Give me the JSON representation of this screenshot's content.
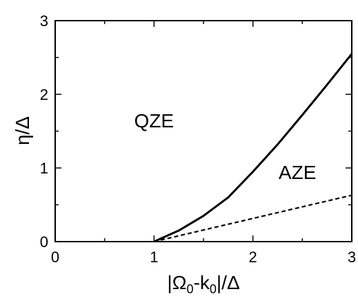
{
  "chart_data": {
    "type": "line",
    "title": "",
    "xlabel": {
      "bar": "|",
      "omega": "Ω",
      "omega_sub": "0",
      "minus_k": "-k",
      "k_sub": "0",
      "bar_over_delta": "|/Δ"
    },
    "ylabel": "η/Δ",
    "xlim": [
      0,
      3
    ],
    "ylim": [
      0,
      3
    ],
    "x_ticks": [
      "0",
      "1",
      "2",
      "3"
    ],
    "y_ticks": [
      "0",
      "1",
      "2",
      "3"
    ],
    "grid": false,
    "series": [
      {
        "style": "solid",
        "x": [
          1.0,
          1.25,
          1.5,
          1.75,
          2.0,
          2.25,
          2.5,
          2.75,
          3.0
        ],
        "y": [
          0.0,
          0.15,
          0.35,
          0.6,
          0.95,
          1.32,
          1.72,
          2.13,
          2.55
        ]
      },
      {
        "style": "dashed",
        "x": [
          1.0,
          3.0
        ],
        "y": [
          0.0,
          0.63
        ]
      }
    ],
    "annotations": [
      {
        "text": "QZE",
        "x": 1.0,
        "y": 1.55
      },
      {
        "text": "AZE",
        "x": 2.45,
        "y": 0.85
      }
    ]
  }
}
